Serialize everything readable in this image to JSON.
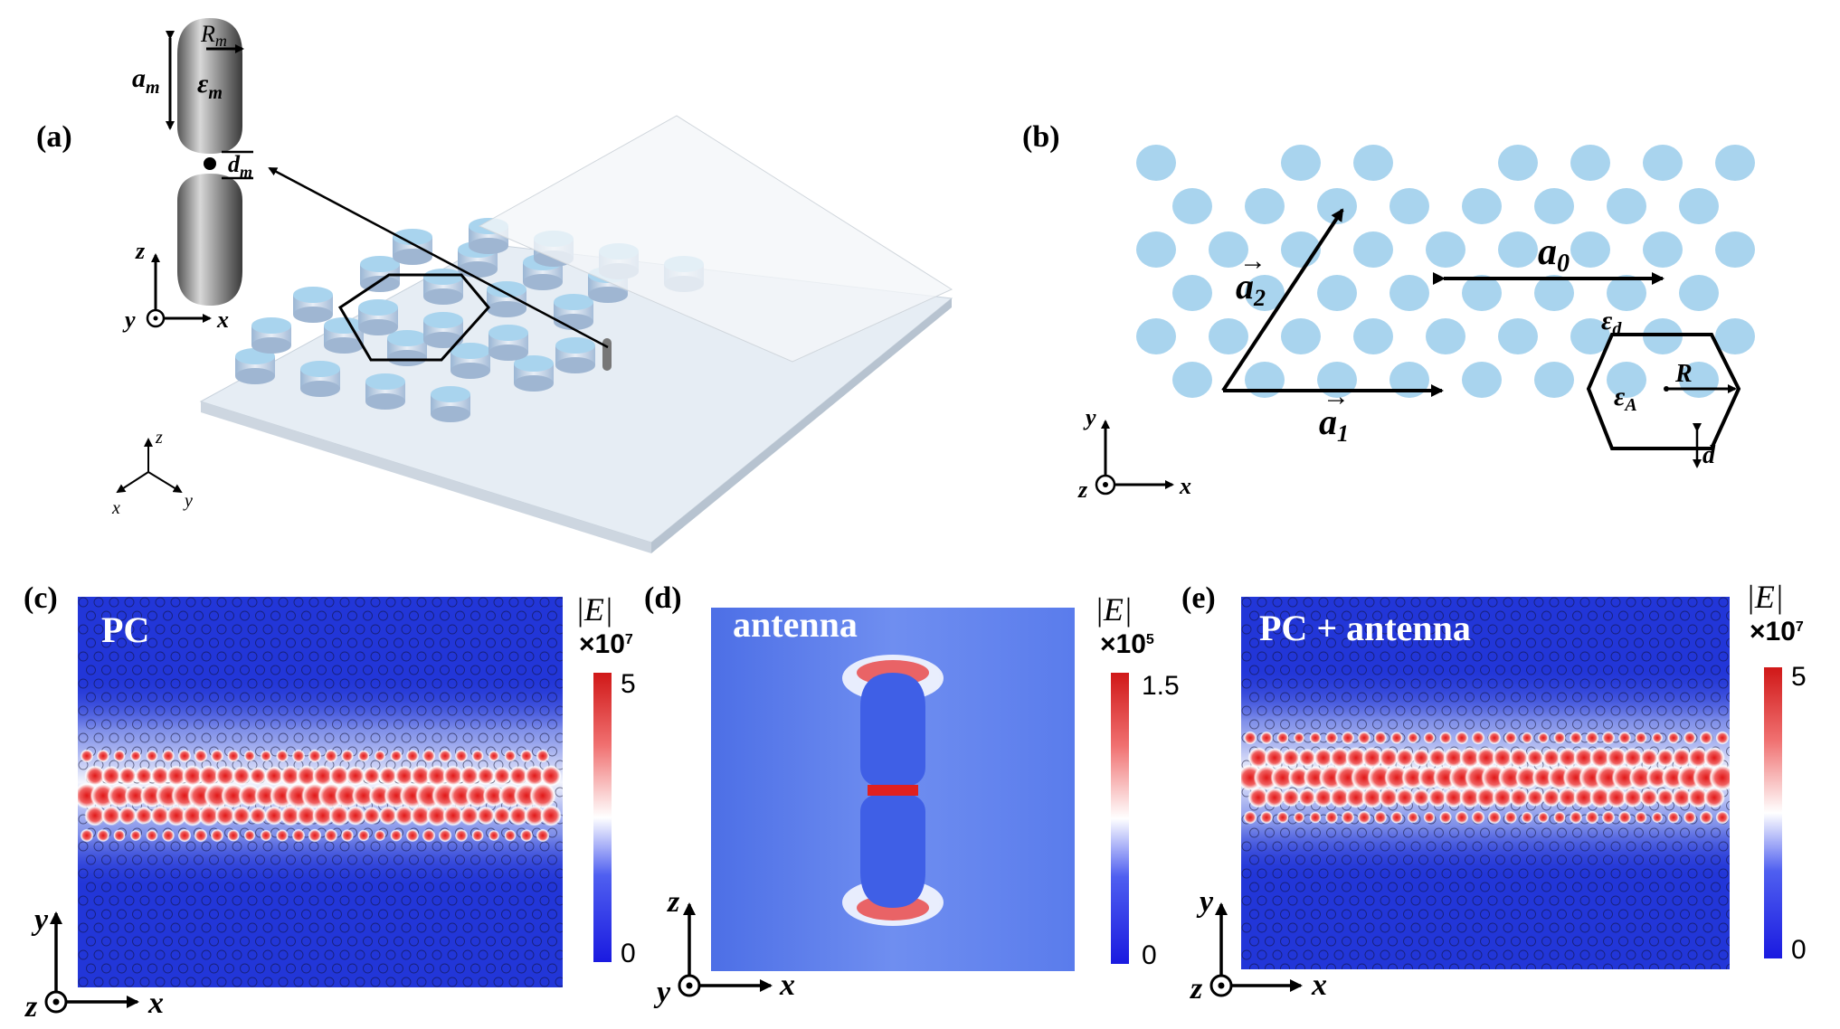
{
  "panels": {
    "a": {
      "label": "(a)"
    },
    "b": {
      "label": "(b)"
    },
    "c": {
      "label": "(c)",
      "title": "PC",
      "colorbar": {
        "quantity": "|E|",
        "scale": "×10",
        "scale_exp": "7",
        "max": "5",
        "min": "0"
      }
    },
    "d": {
      "label": "(d)",
      "title": "antenna",
      "colorbar": {
        "quantity": "|E|",
        "scale": "×10",
        "scale_exp": "5",
        "max": "1.5",
        "min": "0"
      }
    },
    "e": {
      "label": "(e)",
      "title": "PC + antenna",
      "colorbar": {
        "quantity": "|E|",
        "scale": "×10",
        "scale_exp": "7",
        "max": "5",
        "min": "0"
      }
    }
  },
  "antenna_labels": {
    "a_m": "a",
    "a_m_sub": "m",
    "R_m": "R",
    "R_m_sub": "m",
    "eps_m": "ε",
    "eps_m_sub": "m",
    "d_m": "d",
    "d_m_sub": "m"
  },
  "lattice_labels": {
    "a0": "a",
    "a0_sub": "0",
    "a1": "a",
    "a1_sub": "1",
    "a2": "a",
    "a2_sub": "2",
    "eps_d": "ε",
    "eps_d_sub": "d",
    "eps_A": "ε",
    "eps_A_sub": "A",
    "R": "R",
    "d": "d"
  },
  "axes": {
    "x": "x",
    "y": "y",
    "z": "z"
  },
  "colors": {
    "rod": "#a9d4ee",
    "map_bg": "#2a3fd6",
    "hot": "#e02020",
    "antenna_bg": "#4c6fe8"
  }
}
